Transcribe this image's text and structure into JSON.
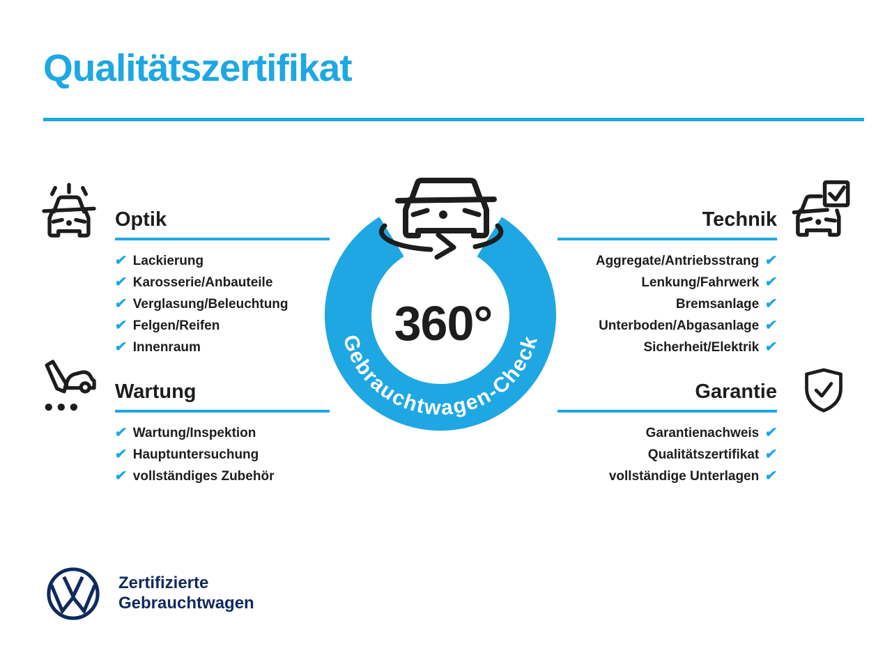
{
  "colors": {
    "accent": "#1ea7e3",
    "navy": "#0f2a5e",
    "ink": "#1d1d1b"
  },
  "page_title": "Qualitätszertifikat",
  "check_glyph": "✔",
  "center_badge": {
    "value": "360°",
    "ring_label": "Gebrauchtwagen-Check",
    "icon": "car-rotate-icon"
  },
  "sections": {
    "optik": {
      "title": "Optik",
      "icon": "sparkling-car-icon",
      "items": [
        "Lackierung",
        "Karosserie/Anbauteile",
        "Verglasung/Beleuchtung",
        "Felgen/Reifen",
        "Innenraum"
      ]
    },
    "wartung": {
      "title": "Wartung",
      "icon": "service-note-car-icon",
      "items": [
        "Wartung/Inspektion",
        "Hauptuntersuchung",
        "vollständiges Zubehör"
      ]
    },
    "technik": {
      "title": "Technik",
      "icon": "car-checkbox-icon",
      "items": [
        "Aggregate/Antriebsstrang",
        "Lenkung/Fahrwerk",
        "Bremsanlage",
        "Unterboden/Abgasanlage",
        "Sicherheit/Elektrik"
      ]
    },
    "garantie": {
      "title": "Garantie",
      "icon": "shield-check-icon",
      "items": [
        "Garantienachweis",
        "Qualitätszertifikat",
        "vollständige Unterlagen"
      ]
    }
  },
  "footer": {
    "logo": "vw-logo",
    "brand_line1": "Zertifizierte",
    "brand_line2": "Gebrauchtwagen"
  }
}
